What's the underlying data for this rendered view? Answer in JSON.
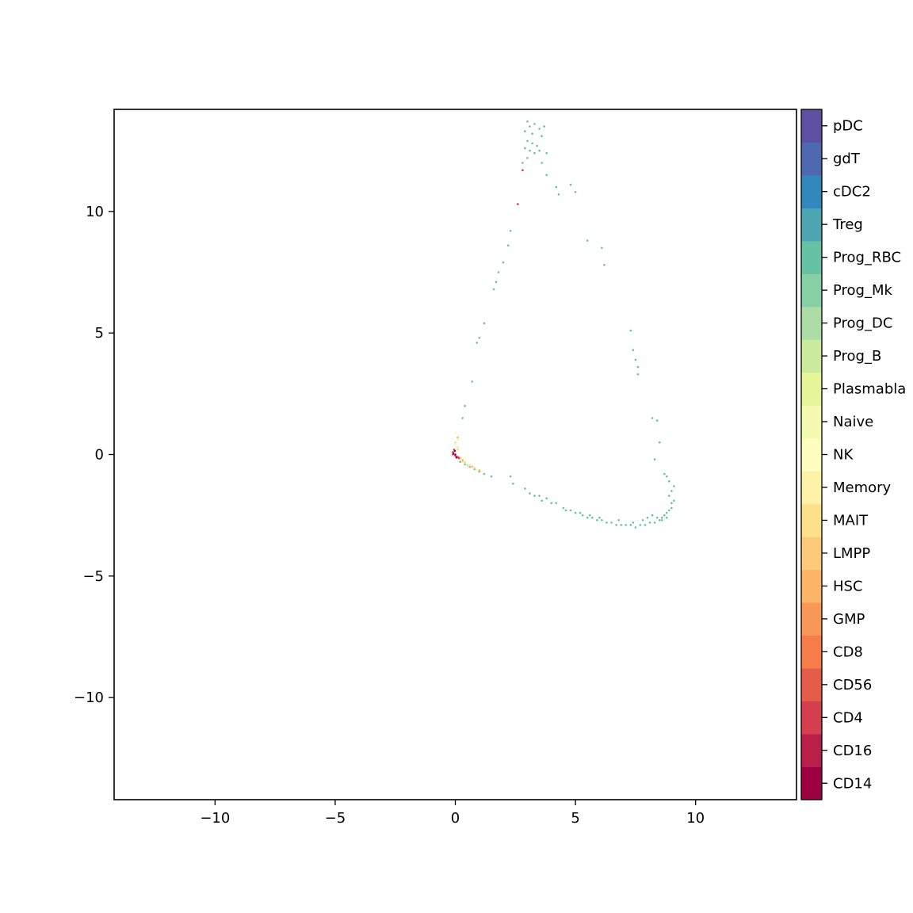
{
  "chart_data": {
    "type": "scatter",
    "title": "",
    "xlabel": "",
    "ylabel": "",
    "xlim": [
      -14.2,
      14.2
    ],
    "ylim": [
      -14.2,
      14.2
    ],
    "grid": false,
    "x_ticks": [
      -10,
      -5,
      0,
      5,
      10
    ],
    "y_ticks": [
      10,
      5,
      0,
      -5,
      -10
    ],
    "x_tick_labels": [
      "−10",
      "−5",
      "0",
      "5",
      "10"
    ],
    "y_tick_labels": [
      "10",
      "5",
      "0",
      "−5",
      "−10"
    ],
    "colorbar": {
      "position": "right",
      "categories": [
        "CD14",
        "CD16",
        "CD4",
        "CD56",
        "CD8",
        "GMP",
        "HSC",
        "LMPP",
        "MAIT",
        "Memory",
        "NK",
        "Naive",
        "Plasmabla",
        "Prog_B",
        "Prog_DC",
        "Prog_Mk",
        "Prog_RBC",
        "Treg",
        "cDC2",
        "gdT",
        "pDC"
      ],
      "colors": [
        "#9e0142",
        "#b91f48",
        "#d53e4f",
        "#e45c4a",
        "#f67c4a",
        "#f99758",
        "#fdb466",
        "#fdca79",
        "#fee08b",
        "#fff1a8",
        "#fffebe",
        "#f4fab0",
        "#e6f598",
        "#ccea9d",
        "#abdda4",
        "#87cfa4",
        "#66c2a5",
        "#4da5b1",
        "#3288bd",
        "#4d68ae",
        "#5e4fa2"
      ]
    },
    "series": [
      {
        "color": "#66c2a5",
        "points": [
          [
            3.0,
            13.7
          ],
          [
            3.1,
            13.5
          ],
          [
            3.3,
            13.6
          ],
          [
            3.5,
            13.4
          ],
          [
            3.7,
            13.5
          ],
          [
            3.2,
            13.2
          ],
          [
            3.6,
            13.1
          ],
          [
            2.9,
            13.3
          ],
          [
            3.0,
            12.9
          ],
          [
            3.2,
            12.8
          ],
          [
            3.4,
            12.7
          ],
          [
            2.9,
            12.6
          ],
          [
            3.1,
            12.5
          ],
          [
            3.3,
            12.4
          ],
          [
            3.0,
            12.2
          ],
          [
            2.8,
            12.0
          ],
          [
            3.5,
            12.5
          ],
          [
            3.8,
            12.4
          ],
          [
            3.6,
            12.0
          ],
          [
            3.8,
            11.5
          ],
          [
            4.2,
            11.0
          ],
          [
            4.3,
            10.7
          ],
          [
            4.8,
            11.1
          ],
          [
            5.0,
            10.8
          ],
          [
            2.3,
            9.2
          ],
          [
            2.2,
            8.6
          ],
          [
            2.0,
            7.9
          ],
          [
            1.8,
            7.5
          ],
          [
            1.7,
            7.1
          ],
          [
            1.6,
            6.8
          ],
          [
            1.2,
            5.4
          ],
          [
            1.0,
            4.8
          ],
          [
            0.9,
            4.6
          ],
          [
            0.7,
            3.0
          ],
          [
            0.4,
            2.0
          ],
          [
            0.3,
            1.5
          ],
          [
            5.5,
            8.8
          ],
          [
            6.1,
            8.5
          ],
          [
            6.2,
            7.8
          ],
          [
            7.3,
            5.1
          ],
          [
            7.4,
            4.3
          ],
          [
            7.5,
            3.9
          ],
          [
            7.6,
            3.6
          ],
          [
            7.6,
            3.3
          ],
          [
            8.2,
            1.5
          ],
          [
            8.4,
            1.4
          ],
          [
            8.5,
            0.5
          ],
          [
            8.3,
            -0.2
          ],
          [
            0.2,
            -0.3
          ],
          [
            0.4,
            -0.4
          ],
          [
            0.6,
            -0.5
          ],
          [
            0.8,
            -0.6
          ],
          [
            1.0,
            -0.7
          ],
          [
            1.2,
            -0.8
          ],
          [
            1.5,
            -0.9
          ],
          [
            2.3,
            -0.9
          ],
          [
            2.4,
            -1.2
          ],
          [
            2.9,
            -1.4
          ],
          [
            3.1,
            -1.6
          ],
          [
            3.3,
            -1.7
          ],
          [
            3.5,
            -1.7
          ],
          [
            3.8,
            -1.8
          ],
          [
            4.2,
            -2.0
          ],
          [
            4.5,
            -2.2
          ],
          [
            4.8,
            -2.3
          ],
          [
            5.0,
            -2.4
          ],
          [
            5.3,
            -2.5
          ],
          [
            5.5,
            -2.6
          ],
          [
            5.7,
            -2.6
          ],
          [
            5.9,
            -2.7
          ],
          [
            6.1,
            -2.7
          ],
          [
            6.3,
            -2.8
          ],
          [
            6.5,
            -2.8
          ],
          [
            6.7,
            -2.9
          ],
          [
            6.9,
            -2.9
          ],
          [
            7.1,
            -2.9
          ],
          [
            7.3,
            -2.9
          ],
          [
            7.5,
            -3.0
          ],
          [
            7.7,
            -2.9
          ],
          [
            7.9,
            -2.9
          ],
          [
            8.1,
            -2.8
          ],
          [
            8.3,
            -2.8
          ],
          [
            8.5,
            -2.7
          ],
          [
            8.6,
            -2.6
          ],
          [
            8.7,
            -2.5
          ],
          [
            8.8,
            -2.4
          ],
          [
            8.9,
            -2.3
          ],
          [
            9.0,
            -2.2
          ],
          [
            9.0,
            -2.0
          ],
          [
            9.1,
            -1.9
          ],
          [
            8.9,
            -1.7
          ],
          [
            9.0,
            -1.5
          ],
          [
            9.1,
            -1.3
          ],
          [
            8.9,
            -1.1
          ],
          [
            8.8,
            -0.9
          ],
          [
            8.7,
            -0.8
          ],
          [
            7.8,
            -2.7
          ],
          [
            8.0,
            -2.6
          ],
          [
            8.2,
            -2.5
          ],
          [
            8.4,
            -2.6
          ],
          [
            8.6,
            -2.7
          ],
          [
            8.8,
            -2.6
          ],
          [
            7.4,
            -2.8
          ],
          [
            6.8,
            -2.7
          ],
          [
            6.0,
            -2.6
          ],
          [
            5.6,
            -2.5
          ],
          [
            5.2,
            -2.4
          ],
          [
            4.6,
            -2.3
          ],
          [
            4.0,
            -2.0
          ],
          [
            3.6,
            -1.9
          ]
        ]
      },
      {
        "color": "#f4fab0",
        "points": [
          [
            0.0,
            0.9
          ],
          [
            0.1,
            0.6
          ],
          [
            0.0,
            0.4
          ],
          [
            0.2,
            -0.2
          ],
          [
            0.3,
            -0.3
          ],
          [
            0.5,
            -0.4
          ],
          [
            0.7,
            -0.5
          ],
          [
            0.9,
            -0.6
          ],
          [
            1.1,
            -0.7
          ]
        ]
      },
      {
        "color": "#fee08b",
        "points": [
          [
            0.1,
            0.3
          ],
          [
            0.2,
            -0.1
          ],
          [
            0.3,
            -0.2
          ],
          [
            0.4,
            -0.3
          ],
          [
            0.6,
            -0.45
          ],
          [
            0.8,
            -0.55
          ]
        ]
      },
      {
        "color": "#ccea9d",
        "points": [
          [
            0.0,
            0.5
          ],
          [
            0.1,
            0.2
          ],
          [
            0.2,
            -0.15
          ],
          [
            0.4,
            -0.35
          ],
          [
            0.5,
            -0.45
          ]
        ]
      },
      {
        "color": "#fdb466",
        "points": [
          [
            0.1,
            0.7
          ],
          [
            0.3,
            -0.25
          ],
          [
            0.7,
            -0.5
          ],
          [
            1.0,
            -0.65
          ]
        ]
      },
      {
        "color": "#d53e4f",
        "points": [
          [
            -0.1,
            0.1
          ],
          [
            -0.1,
            0.0
          ],
          [
            0.0,
            -0.05
          ],
          [
            0.05,
            -0.1
          ],
          [
            -0.05,
            0.2
          ],
          [
            0.1,
            -0.1
          ],
          [
            0.15,
            -0.15
          ],
          [
            2.6,
            10.3
          ],
          [
            2.8,
            11.7
          ]
        ]
      },
      {
        "color": "#9e0142",
        "points": [
          [
            -0.08,
            0.05
          ],
          [
            0.0,
            0.0
          ],
          [
            0.05,
            -0.12
          ],
          [
            -0.02,
            0.15
          ]
        ]
      }
    ]
  }
}
